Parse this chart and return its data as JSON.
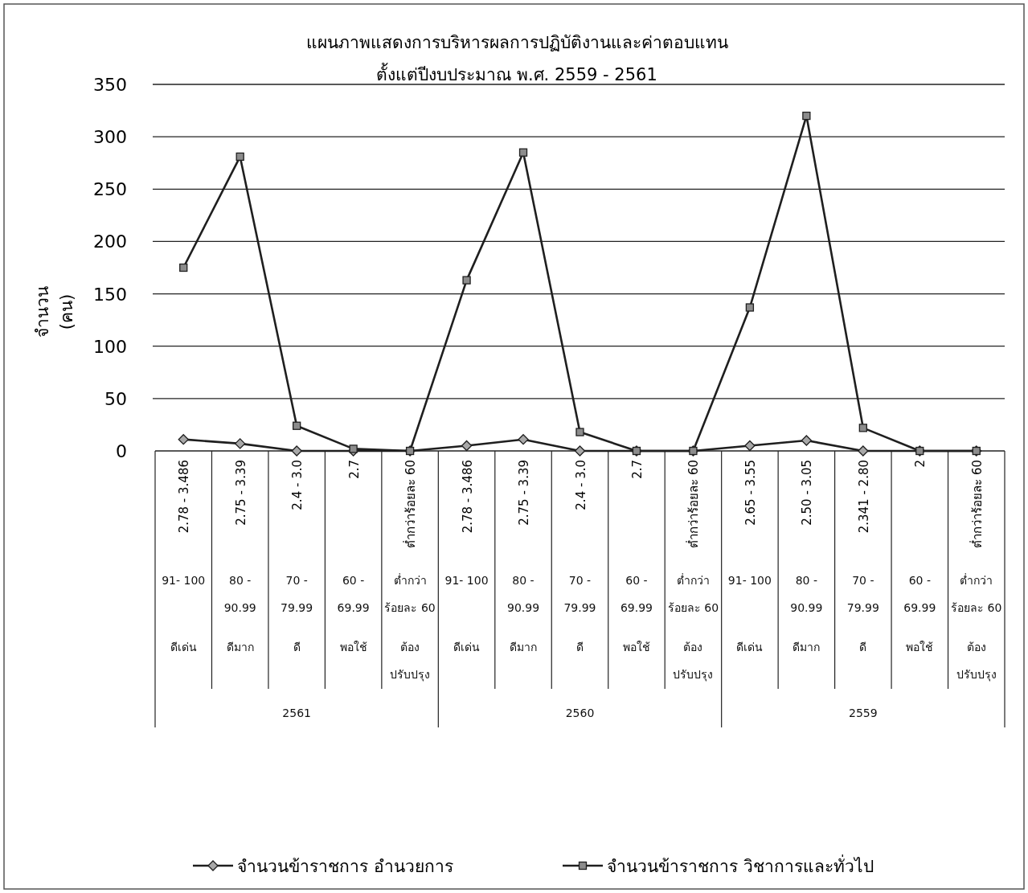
{
  "chart_data": {
    "type": "line",
    "title": "แผนภาพแสดงการบริหารผลการปฏิบัติงานและค่าตอบแทน",
    "subtitle": "ตั้งแต่ปีงบประมาณ พ.ศ. 2559 - 2561",
    "ylabel": "จำนวน (คน)",
    "categories": [
      "2.78 - 3.486",
      "2.75 - 3.39",
      "2.4 - 3.0",
      "2.7",
      "ต่ำกว่าร้อยละ 60",
      "2.78 - 3.486",
      "2.75 - 3.39",
      "2.4 - 3.0",
      "2.7",
      "ต่ำกว่าร้อยละ 60",
      "2.65 - 3.55",
      "2.50 - 3.05",
      "2.341 - 2.80",
      "2",
      "ต่ำกว่าร้อยละ 60"
    ],
    "annotations": [
      "91- 100",
      "80 - 90.99",
      "70 - 79.99",
      "60 - 69.99",
      "ต่ำกว่า ร้อยละ 60",
      "91- 100",
      "80 - 90.99",
      "70 - 79.99",
      "60 - 69.99",
      "ต่ำกว่า ร้อยละ 60",
      "91- 100",
      "80 - 90.99",
      "70 - 79.99",
      "60 - 69.99",
      "ต่ำกว่า ร้อยละ 60",
      "ดีเด่น",
      "ดีมาก",
      "ดี",
      "พอใช้",
      "ต้อง ปรับปรุง",
      "ดีเด่น",
      "ดีมาก",
      "ดี",
      "พอใช้",
      "ต้อง ปรับปรุง",
      "ดีเด่น",
      "ดีมาก",
      "ดี",
      "พอใช้",
      "ต้อง ปรับปรุง",
      "2561",
      "2560",
      "2559"
    ],
    "series": [
      {
        "name": "จำนวนข้าราชการ อำนวยการ",
        "color": "#1f1f1f",
        "marker": "diamond",
        "values": [
          11,
          7,
          0,
          0,
          0,
          5,
          11,
          0,
          0,
          0,
          5,
          10,
          0,
          0,
          0
        ]
      },
      {
        "name": "จำนวนข้าราชการ วิชาการและทั่วไป",
        "color": "#1f1f1f",
        "marker": "square",
        "values": [
          175,
          281,
          24,
          2,
          0,
          163,
          285,
          18,
          0,
          0,
          137,
          320,
          22,
          0,
          0
        ]
      }
    ],
    "ylim": [
      0,
      350
    ],
    "yticks": [
      0,
      50,
      100,
      150,
      200,
      250,
      300,
      350
    ],
    "grid": "y",
    "legend": "bottom"
  }
}
